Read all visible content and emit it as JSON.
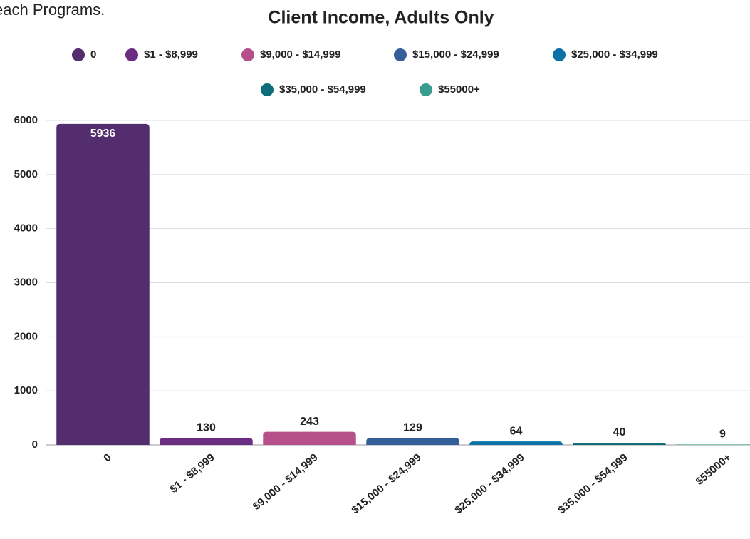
{
  "page_text": "each Programs.",
  "chart_data": {
    "type": "bar",
    "title": "Client Income, Adults Only",
    "categories": [
      "0",
      "$1 - $8,999",
      "$9,000 - $14,999",
      "$15,000 - $24,999",
      "$25,000 - $34,999",
      "$35,000 - $54,999",
      "$55000+"
    ],
    "values": [
      5936,
      130,
      243,
      129,
      64,
      40,
      9
    ],
    "colors": [
      "#532d6d",
      "#6b2d82",
      "#b5508a",
      "#355f99",
      "#0b72a8",
      "#0e6d78",
      "#3a9c8c"
    ],
    "ylim": [
      0,
      6000
    ],
    "yticks": [
      0,
      1000,
      2000,
      3000,
      4000,
      5000,
      6000
    ],
    "grid": true,
    "legend": "top"
  }
}
